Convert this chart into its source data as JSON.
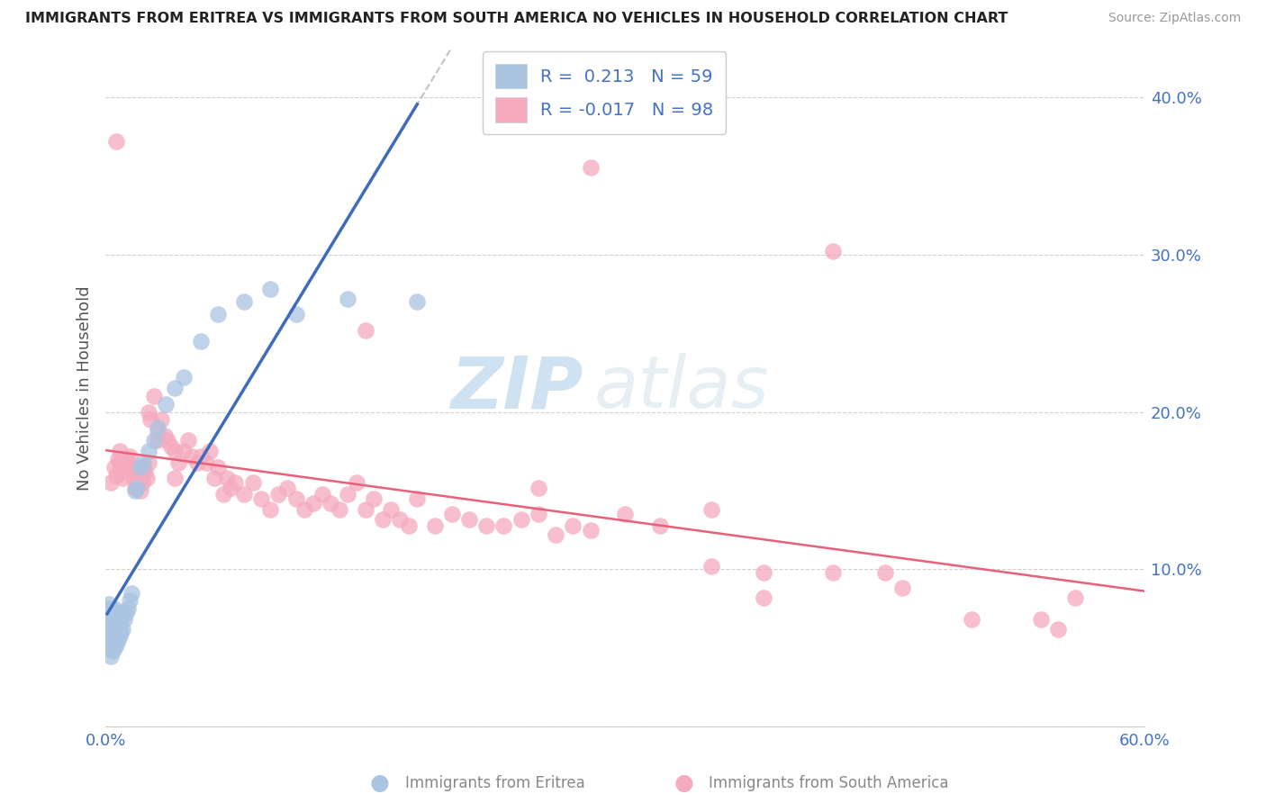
{
  "title": "IMMIGRANTS FROM ERITREA VS IMMIGRANTS FROM SOUTH AMERICA NO VEHICLES IN HOUSEHOLD CORRELATION CHART",
  "source": "Source: ZipAtlas.com",
  "ylabel": "No Vehicles in Household",
  "y_ticks": [
    0.0,
    0.1,
    0.2,
    0.3,
    0.4
  ],
  "y_tick_labels": [
    "",
    "10.0%",
    "20.0%",
    "30.0%",
    "40.0%"
  ],
  "xlim": [
    0.0,
    0.6
  ],
  "ylim": [
    0.0,
    0.43
  ],
  "legend_eritrea_R": "0.213",
  "legend_eritrea_N": "59",
  "legend_south_america_R": "-0.017",
  "legend_south_america_N": "98",
  "eritrea_color": "#aac4e2",
  "south_america_color": "#f5aabe",
  "eritrea_line_color": "#3d6bbf",
  "south_america_line_color": "#e8607a",
  "eritrea_dash_color": "#aaccdd",
  "watermark_zip": "ZIP",
  "watermark_atlas": "atlas",
  "background_color": "#ffffff",
  "eritrea_x": [
    0.001,
    0.001,
    0.001,
    0.002,
    0.002,
    0.002,
    0.002,
    0.002,
    0.003,
    0.003,
    0.003,
    0.003,
    0.003,
    0.003,
    0.004,
    0.004,
    0.004,
    0.004,
    0.005,
    0.005,
    0.005,
    0.005,
    0.005,
    0.006,
    0.006,
    0.006,
    0.006,
    0.007,
    0.007,
    0.007,
    0.008,
    0.008,
    0.008,
    0.009,
    0.009,
    0.01,
    0.01,
    0.011,
    0.012,
    0.013,
    0.014,
    0.015,
    0.017,
    0.018,
    0.02,
    0.022,
    0.025,
    0.028,
    0.03,
    0.035,
    0.04,
    0.045,
    0.055,
    0.065,
    0.08,
    0.095,
    0.11,
    0.14,
    0.18
  ],
  "eritrea_y": [
    0.055,
    0.068,
    0.075,
    0.05,
    0.06,
    0.065,
    0.07,
    0.078,
    0.045,
    0.055,
    0.06,
    0.065,
    0.07,
    0.075,
    0.048,
    0.055,
    0.062,
    0.068,
    0.05,
    0.058,
    0.062,
    0.068,
    0.075,
    0.052,
    0.058,
    0.065,
    0.072,
    0.055,
    0.062,
    0.07,
    0.058,
    0.065,
    0.072,
    0.06,
    0.068,
    0.062,
    0.072,
    0.068,
    0.072,
    0.075,
    0.08,
    0.085,
    0.15,
    0.152,
    0.165,
    0.168,
    0.175,
    0.182,
    0.19,
    0.205,
    0.215,
    0.222,
    0.245,
    0.262,
    0.27,
    0.278,
    0.262,
    0.272,
    0.27
  ],
  "south_america_x": [
    0.003,
    0.005,
    0.006,
    0.007,
    0.008,
    0.009,
    0.01,
    0.011,
    0.012,
    0.013,
    0.014,
    0.015,
    0.016,
    0.017,
    0.018,
    0.019,
    0.02,
    0.021,
    0.022,
    0.023,
    0.024,
    0.025,
    0.026,
    0.028,
    0.03,
    0.032,
    0.034,
    0.036,
    0.038,
    0.04,
    0.042,
    0.045,
    0.048,
    0.05,
    0.053,
    0.055,
    0.058,
    0.06,
    0.063,
    0.065,
    0.068,
    0.072,
    0.075,
    0.08,
    0.085,
    0.09,
    0.095,
    0.1,
    0.105,
    0.11,
    0.115,
    0.12,
    0.125,
    0.13,
    0.135,
    0.14,
    0.145,
    0.15,
    0.155,
    0.16,
    0.165,
    0.17,
    0.175,
    0.18,
    0.19,
    0.2,
    0.21,
    0.22,
    0.23,
    0.24,
    0.25,
    0.26,
    0.27,
    0.28,
    0.3,
    0.32,
    0.35,
    0.38,
    0.42,
    0.46,
    0.5,
    0.54,
    0.56,
    0.07,
    0.04,
    0.03,
    0.025,
    0.015,
    0.008,
    0.006,
    0.15,
    0.25,
    0.35,
    0.45,
    0.55,
    0.42,
    0.38,
    0.28
  ],
  "south_america_y": [
    0.155,
    0.165,
    0.16,
    0.17,
    0.175,
    0.162,
    0.158,
    0.165,
    0.17,
    0.168,
    0.172,
    0.162,
    0.158,
    0.152,
    0.158,
    0.162,
    0.15,
    0.155,
    0.165,
    0.162,
    0.158,
    0.2,
    0.195,
    0.21,
    0.188,
    0.195,
    0.185,
    0.182,
    0.178,
    0.175,
    0.168,
    0.175,
    0.182,
    0.172,
    0.168,
    0.172,
    0.168,
    0.175,
    0.158,
    0.165,
    0.148,
    0.152,
    0.155,
    0.148,
    0.155,
    0.145,
    0.138,
    0.148,
    0.152,
    0.145,
    0.138,
    0.142,
    0.148,
    0.142,
    0.138,
    0.148,
    0.155,
    0.138,
    0.145,
    0.132,
    0.138,
    0.132,
    0.128,
    0.145,
    0.128,
    0.135,
    0.132,
    0.128,
    0.128,
    0.132,
    0.135,
    0.122,
    0.128,
    0.125,
    0.135,
    0.128,
    0.102,
    0.098,
    0.098,
    0.088,
    0.068,
    0.068,
    0.082,
    0.158,
    0.158,
    0.182,
    0.168,
    0.162,
    0.168,
    0.372,
    0.252,
    0.152,
    0.138,
    0.098,
    0.062,
    0.302,
    0.082,
    0.355
  ]
}
